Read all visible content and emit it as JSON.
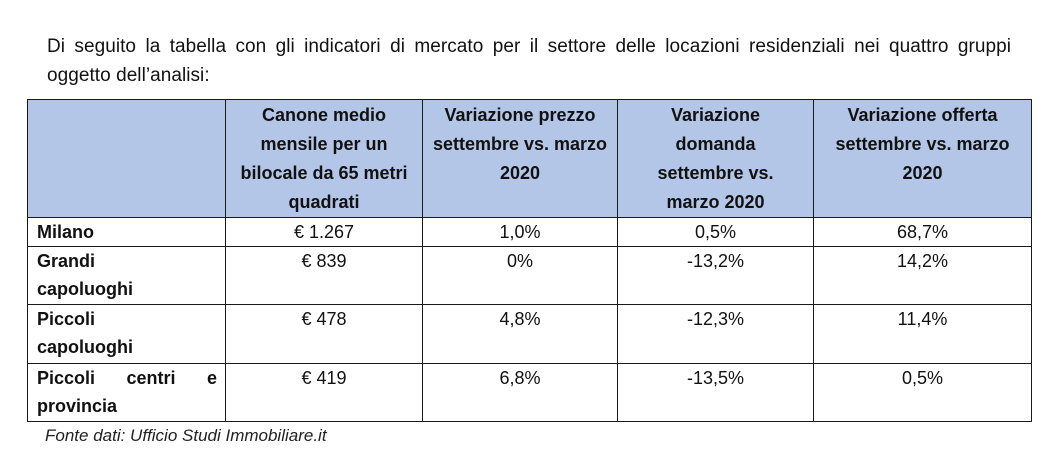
{
  "intro": {
    "text": "Di seguito la tabella con gli indicatori di mercato per il settore delle locazioni residenziali nei quattro gruppi oggetto dell’analisi:"
  },
  "table": {
    "header_color": "#b4c6e7",
    "columns": [
      "",
      "Canone medio mensile per un bilocale da 65 metri quadrati",
      "Variazione prezzo settembre vs. marzo 2020",
      "Variazione domanda settembre vs. marzo 2020",
      "Variazione offerta settembre vs. marzo 2020"
    ],
    "rows": [
      {
        "name": "Milano",
        "canone": "€ 1.267",
        "prezzo": "1,0%",
        "domanda": "0,5%",
        "offerta": "68,7%"
      },
      {
        "name": "Grandi capoluoghi",
        "canone": "€ 839",
        "prezzo": "0%",
        "domanda": "-13,2%",
        "offerta": "14,2%"
      },
      {
        "name": "Piccoli capoluoghi",
        "canone": "€ 478",
        "prezzo": "4,8%",
        "domanda": "-12,3%",
        "offerta": "11,4%"
      },
      {
        "name": "Piccoli centri e provincia",
        "canone": "€ 419",
        "prezzo": "6,8%",
        "domanda": "-13,5%",
        "offerta": "0,5%"
      }
    ]
  },
  "source": {
    "text": "Fonte dati: Ufficio Studi Immobiliare.it"
  }
}
